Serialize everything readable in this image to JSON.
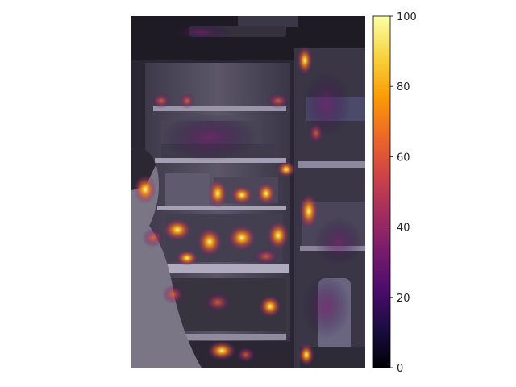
{
  "figure": {
    "kind": "saliency heatmap overlay on photograph",
    "photo_subject": "person looking into open refrigerator at night",
    "colormap": "inferno",
    "colormap_stops": [
      "#000004",
      "#1b0c41",
      "#4a0c6b",
      "#781c6d",
      "#a52c60",
      "#cf4446",
      "#ed6925",
      "#fb9b06",
      "#f7d13d",
      "#fcffa4"
    ]
  },
  "colorbar": {
    "min": 0,
    "max": 100,
    "ticks": [
      "0",
      "20",
      "40",
      "60",
      "80",
      "100"
    ]
  }
}
